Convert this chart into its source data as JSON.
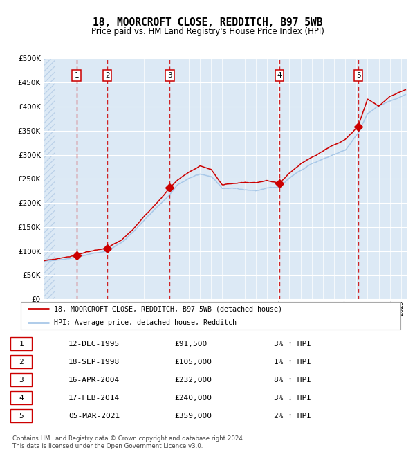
{
  "title": "18, MOORCROFT CLOSE, REDDITCH, B97 5WB",
  "subtitle": "Price paid vs. HM Land Registry's House Price Index (HPI)",
  "ylim": [
    0,
    500000
  ],
  "yticks": [
    0,
    50000,
    100000,
    150000,
    200000,
    250000,
    300000,
    350000,
    400000,
    450000,
    500000
  ],
  "xlim_start": 1993.0,
  "xlim_end": 2025.5,
  "background_color": "#dce9f5",
  "grid_color": "#ffffff",
  "sale_color": "#cc0000",
  "hpi_color": "#a8c8e8",
  "transactions": [
    {
      "num": 1,
      "date_label": "12-DEC-1995",
      "year": 1995.95,
      "price": 91500
    },
    {
      "num": 2,
      "date_label": "18-SEP-1998",
      "year": 1998.71,
      "price": 105000
    },
    {
      "num": 3,
      "date_label": "16-APR-2004",
      "year": 2004.29,
      "price": 232000
    },
    {
      "num": 4,
      "date_label": "17-FEB-2014",
      "year": 2014.12,
      "price": 240000
    },
    {
      "num": 5,
      "date_label": "05-MAR-2021",
      "year": 2021.17,
      "price": 359000
    }
  ],
  "legend_sale_label": "18, MOORCROFT CLOSE, REDDITCH, B97 5WB (detached house)",
  "legend_hpi_label": "HPI: Average price, detached house, Redditch",
  "footnote": "Contains HM Land Registry data © Crown copyright and database right 2024.\nThis data is licensed under the Open Government Licence v3.0.",
  "table_rows": [
    [
      "1",
      "12-DEC-1995",
      "£91,500",
      "3% ↑ HPI"
    ],
    [
      "2",
      "18-SEP-1998",
      "£105,000",
      "1% ↑ HPI"
    ],
    [
      "3",
      "16-APR-2004",
      "£232,000",
      "8% ↑ HPI"
    ],
    [
      "4",
      "17-FEB-2014",
      "£240,000",
      "3% ↓ HPI"
    ],
    [
      "5",
      "05-MAR-2021",
      "£359,000",
      "2% ↑ HPI"
    ]
  ]
}
